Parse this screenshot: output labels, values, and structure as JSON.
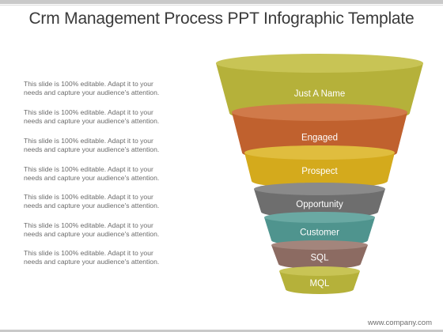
{
  "slide": {
    "title": "Crm Management Process PPT Infographic Template",
    "footer": "www.company.com"
  },
  "descriptions": [
    {
      "line1": "This slide is 100% editable. Adapt it to your",
      "line2": "needs and capture your audience's attention."
    },
    {
      "line1": "This slide is 100% editable. Adapt it to your",
      "line2": "needs and capture your audience's attention."
    },
    {
      "line1": "This slide is 100% editable. Adapt it to your",
      "line2": "needs and capture your audience's attention."
    },
    {
      "line1": "This slide is 100% editable. Adapt it to your",
      "line2": "needs and capture your audience's attention."
    },
    {
      "line1": "This slide is 100% editable. Adapt it to your",
      "line2": "needs and capture your audience's attention."
    },
    {
      "line1": "This slide is 100% editable. Adapt it to your",
      "line2": "needs and capture your audience's attention."
    },
    {
      "line1": "This slide is 100% editable. Adapt it to your",
      "line2": "needs and capture your audience's attention."
    }
  ],
  "funnel": {
    "stages": [
      {
        "label": "Just A Name",
        "color": "#b5b13a",
        "top_color": "#c8c455"
      },
      {
        "label": "Engaged",
        "color": "#c0612e",
        "top_color": "#d07a4a"
      },
      {
        "label": "Prospect",
        "color": "#d4aa1c",
        "top_color": "#e0bd3e"
      },
      {
        "label": "Opportunity",
        "color": "#6e6e6e",
        "top_color": "#8a8a8a"
      },
      {
        "label": "Customer",
        "color": "#4f948e",
        "top_color": "#6aa9a3"
      },
      {
        "label": "SQL",
        "color": "#8c6b62",
        "top_color": "#a3857c"
      },
      {
        "label": "MQL",
        "color": "#b5b13a",
        "top_color": "#c8c455"
      }
    ]
  }
}
